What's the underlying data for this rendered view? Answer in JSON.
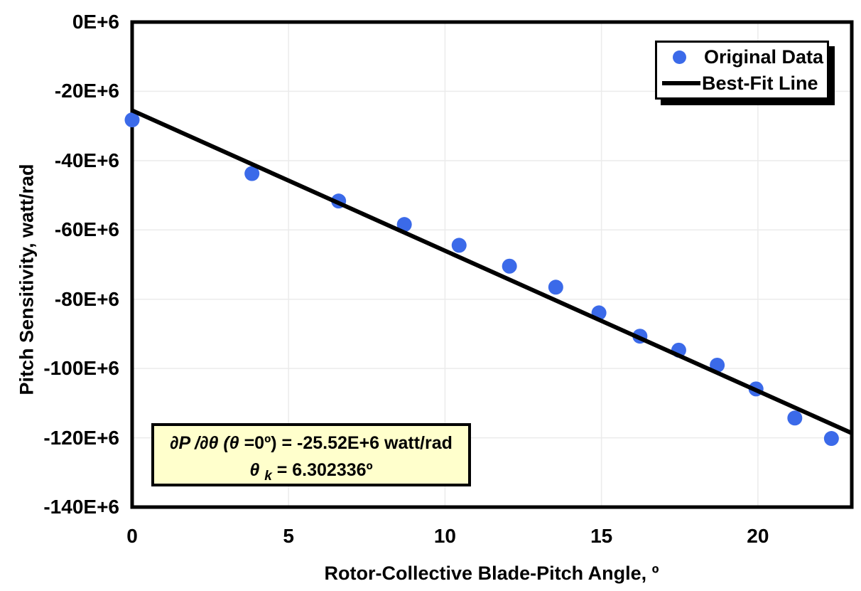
{
  "chart_data": {
    "type": "scatter",
    "title": "",
    "xlabel": "Rotor-Collective Blade-Pitch Angle, º",
    "ylabel": "Pitch Sensitivity, watt/rad",
    "xlim": [
      0,
      23
    ],
    "ylim": [
      -140,
      0
    ],
    "y_unit": "E+6 watt/rad (axis labels in millions)",
    "grid": true,
    "legend_position": "top-right",
    "x_ticks": {
      "values": [
        0,
        5,
        10,
        15,
        20
      ],
      "labels": [
        "0",
        "5",
        "10",
        "15",
        "20"
      ]
    },
    "y_ticks": {
      "values": [
        0,
        -20,
        -40,
        -60,
        -80,
        -100,
        -120,
        -140
      ],
      "labels": [
        "0E+6",
        "-20E+6",
        "-40E+6",
        "-60E+6",
        "-80E+6",
        "-100E+6",
        "-120E+6",
        "-140E+6"
      ]
    },
    "series": [
      {
        "name": "Original Data",
        "type": "scatter",
        "color": "#3B6AE9",
        "x": [
          0.0,
          3.83,
          6.6,
          8.7,
          10.45,
          12.06,
          13.54,
          14.92,
          16.23,
          17.47,
          18.7,
          19.94,
          21.18,
          22.35
        ],
        "y": [
          -28.24,
          -43.73,
          -51.66,
          -58.44,
          -64.44,
          -70.46,
          -76.53,
          -83.94,
          -90.67,
          -94.71,
          -99.04,
          -105.9,
          -114.3,
          -120.2
        ]
      },
      {
        "name": "Best-Fit Line",
        "type": "line",
        "color": "#000000",
        "x": [
          0,
          23
        ],
        "y": [
          -25.52,
          -118.65
        ]
      }
    ]
  },
  "legend": {
    "items": [
      {
        "label": "Original Data",
        "marker": "dot-icon",
        "color": "#3B6AE9"
      },
      {
        "label": "Best-Fit Line",
        "marker": "line-icon",
        "color": "#000000"
      }
    ]
  },
  "annotation": {
    "background": "#FFFFCC",
    "line1_text": "∂P /∂θ (θ =0º) = -25.52E+6 watt/rad",
    "line2_text": "θ k = 6.302336º",
    "line1_parts": [
      {
        "text": "∂P /∂θ (θ ",
        "style": "italic"
      },
      {
        "text": "=0º) = -25.52E+6 watt/rad",
        "style": "normal"
      }
    ],
    "line2_parts": [
      {
        "text": "θ ",
        "style": "italic"
      },
      {
        "text": "k",
        "style": "sub-italic"
      },
      {
        "text": " = 6.302336º",
        "style": "normal"
      }
    ]
  },
  "colors": {
    "background": "#FFFFFF",
    "point": "#3B6AE9",
    "fit_line": "#000000",
    "grid": "#EBEBEB",
    "plot_border": "#000000",
    "annotation_bg": "#FFFFCC",
    "legend_shadow": "#000000"
  }
}
